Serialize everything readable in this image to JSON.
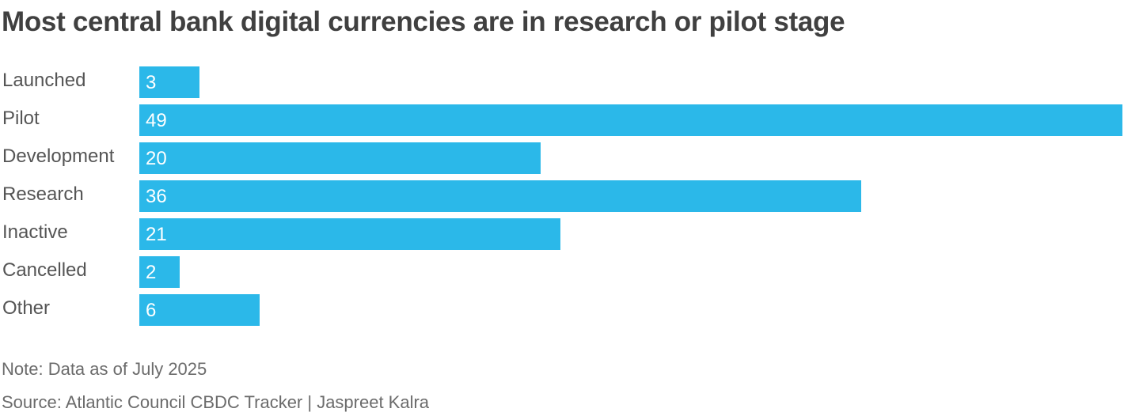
{
  "title": "Most central bank digital currencies are in research or pilot stage",
  "note": "Note: Data as of July 2025",
  "source": "Source: Atlantic Council CBDC Tracker | Jaspreet Kalra",
  "bar_color": "#2bb8e9",
  "rows": [
    {
      "label": "Launched",
      "value": "3"
    },
    {
      "label": "Pilot",
      "value": "49"
    },
    {
      "label": "Development",
      "value": "20"
    },
    {
      "label": "Research",
      "value": "36"
    },
    {
      "label": "Inactive",
      "value": "21"
    },
    {
      "label": "Cancelled",
      "value": "2"
    },
    {
      "label": "Other",
      "value": "6"
    }
  ],
  "chart_data": {
    "type": "bar",
    "orientation": "horizontal",
    "title": "Most central bank digital currencies are in research or pilot stage",
    "categories": [
      "Launched",
      "Pilot",
      "Development",
      "Research",
      "Inactive",
      "Cancelled",
      "Other"
    ],
    "values": [
      3,
      49,
      20,
      36,
      21,
      2,
      6
    ],
    "xlabel": "",
    "ylabel": "",
    "xlim": [
      0,
      49
    ],
    "grid": false,
    "legend": null,
    "data_labels": true,
    "annotations": [
      "Note: Data as of July 2025",
      "Source: Atlantic Council CBDC Tracker | Jaspreet Kalra"
    ]
  }
}
